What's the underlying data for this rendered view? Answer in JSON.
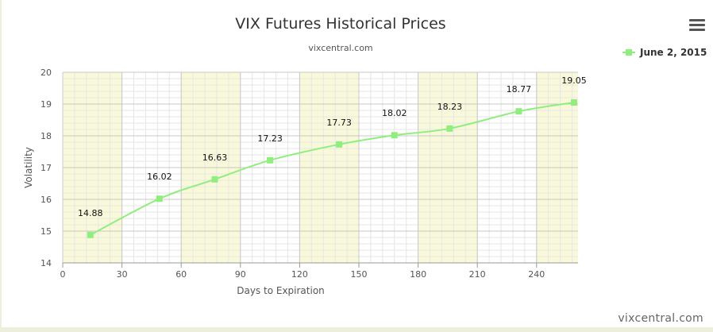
{
  "chart_data": {
    "type": "line",
    "title": "VIX Futures Historical Prices",
    "subtitle": "vixcentral.com",
    "xlabel": "Days to Expiration",
    "ylabel": "Volatility",
    "xlim": [
      0,
      261
    ],
    "ylim": [
      14,
      20
    ],
    "x_ticks": [
      "0",
      "30",
      "60",
      "90",
      "120",
      "150",
      "180",
      "210",
      "240"
    ],
    "y_ticks": [
      "14",
      "15",
      "16",
      "17",
      "18",
      "19",
      "20"
    ],
    "grid": true,
    "legend_position": "top-right",
    "series": [
      {
        "name": "June 2, 2015",
        "color": "#90ee7e",
        "x": [
          14,
          49,
          77,
          105,
          140,
          168,
          196,
          231,
          259
        ],
        "y": [
          14.88,
          16.02,
          16.63,
          17.23,
          17.73,
          18.02,
          18.23,
          18.77,
          19.05
        ],
        "labels": [
          "14.88",
          "16.02",
          "16.63",
          "17.23",
          "17.73",
          "18.02",
          "18.23",
          "18.77",
          "19.05"
        ]
      }
    ],
    "band_color": "#f9f9d9"
  },
  "watermark": "vixcentral.com"
}
